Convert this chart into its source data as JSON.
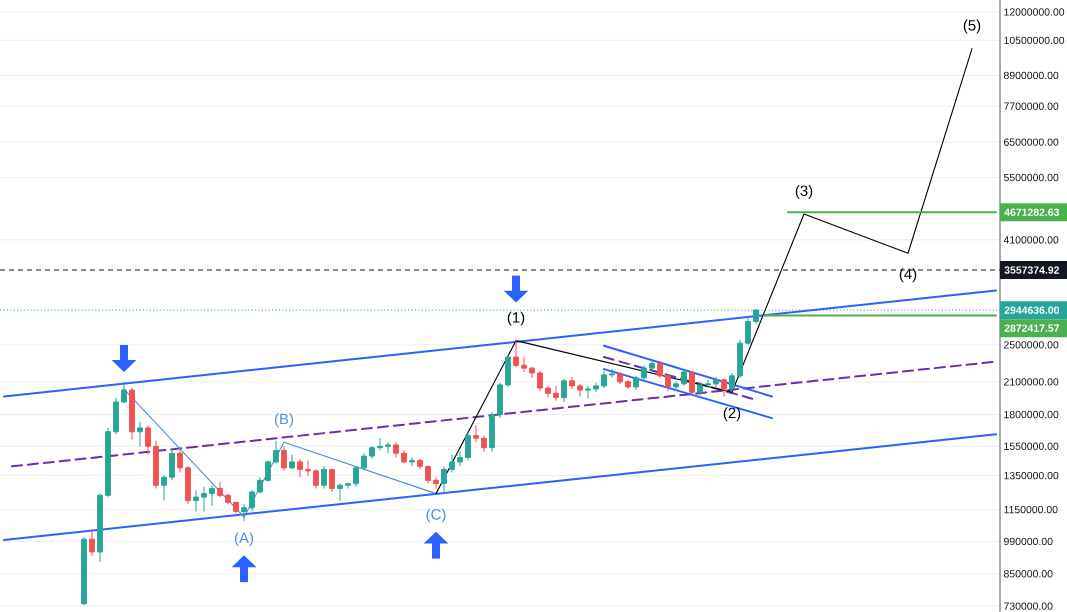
{
  "chart_data": {
    "type": "candlestick",
    "categories": [
      null,
      null,
      null,
      null,
      null,
      null,
      null,
      null,
      null,
      null,
      null,
      null,
      null,
      null,
      null,
      null,
      null,
      null,
      null,
      null,
      null,
      null,
      null,
      null,
      null,
      null,
      null,
      null,
      null,
      null,
      null,
      null,
      null,
      null,
      null,
      null,
      null,
      null,
      null,
      null,
      null,
      null,
      null,
      null,
      null,
      null,
      null,
      null,
      null,
      null,
      null,
      null,
      null,
      null,
      null,
      null,
      null,
      null,
      null,
      null,
      null,
      null,
      null,
      null,
      null,
      null,
      null,
      null,
      null,
      null,
      null,
      null,
      null,
      null,
      null,
      null,
      null,
      null,
      null,
      null,
      null,
      null,
      null,
      null,
      null,
      null,
      null,
      null,
      null,
      null,
      null,
      null,
      null,
      null,
      null,
      null,
      null,
      null,
      null,
      null,
      null,
      null,
      null,
      null,
      null,
      null,
      null,
      null,
      null,
      null,
      null,
      null,
      null,
      null,
      null,
      null,
      null,
      null,
      null,
      null,
      null,
      null,
      null,
      null,
      null
    ],
    "ohlc": [
      null,
      null,
      null,
      null,
      null,
      null,
      null,
      null,
      null,
      null,
      [
        738000,
        1010000,
        734000,
        1000000
      ],
      [
        1000000,
        1050000,
        925000,
        942000
      ],
      [
        942000,
        1240000,
        899000,
        1230000
      ],
      [
        1230000,
        1690000,
        1220000,
        1660000
      ],
      [
        1660000,
        1950000,
        1640000,
        1910000
      ],
      [
        1910000,
        2100000,
        1900000,
        2020000
      ],
      [
        2020000,
        2040000,
        1600000,
        1660000
      ],
      [
        1660000,
        1740000,
        1550000,
        1690000
      ],
      [
        1690000,
        1710000,
        1490000,
        1550000
      ],
      [
        1550000,
        1590000,
        1270000,
        1290000
      ],
      [
        1290000,
        1350000,
        1200000,
        1340000
      ],
      [
        1340000,
        1530000,
        1320000,
        1500000
      ],
      [
        1500000,
        1520000,
        1370000,
        1400000
      ],
      [
        1400000,
        1410000,
        1180000,
        1200000
      ],
      [
        1200000,
        1260000,
        1140000,
        1220000
      ],
      [
        1220000,
        1280000,
        1140000,
        1240000
      ],
      [
        1240000,
        1290000,
        1170000,
        1270000
      ],
      [
        1270000,
        1310000,
        1220000,
        1230000
      ],
      [
        1230000,
        1240000,
        1180000,
        1190000
      ],
      [
        1190000,
        1190000,
        1130000,
        1140000
      ],
      [
        1140000,
        1180000,
        1090000,
        1160000
      ],
      [
        1160000,
        1260000,
        1140000,
        1250000
      ],
      [
        1250000,
        1340000,
        1240000,
        1320000
      ],
      [
        1320000,
        1450000,
        1310000,
        1440000
      ],
      [
        1440000,
        1590000,
        1430000,
        1520000
      ],
      [
        1520000,
        1550000,
        1380000,
        1400000
      ],
      [
        1400000,
        1490000,
        1390000,
        1440000
      ],
      [
        1440000,
        1460000,
        1340000,
        1390000
      ],
      [
        1390000,
        1450000,
        1350000,
        1380000
      ],
      [
        1380000,
        1390000,
        1270000,
        1290000
      ],
      [
        1290000,
        1410000,
        1270000,
        1390000
      ],
      [
        1390000,
        1390000,
        1250000,
        1270000
      ],
      [
        1270000,
        1300000,
        1200000,
        1290000
      ],
      [
        1290000,
        1300000,
        1270000,
        1300000
      ],
      [
        1300000,
        1410000,
        1280000,
        1400000
      ],
      [
        1400000,
        1500000,
        1390000,
        1480000
      ],
      [
        1480000,
        1550000,
        1460000,
        1540000
      ],
      [
        1540000,
        1610000,
        1520000,
        1550000
      ],
      [
        1550000,
        1580000,
        1500000,
        1560000
      ],
      [
        1560000,
        1580000,
        1470000,
        1500000
      ],
      [
        1500000,
        1520000,
        1430000,
        1440000
      ],
      [
        1440000,
        1470000,
        1410000,
        1450000
      ],
      [
        1450000,
        1460000,
        1390000,
        1410000
      ],
      [
        1410000,
        1410000,
        1300000,
        1320000
      ],
      [
        1320000,
        1340000,
        1270000,
        1300000
      ],
      [
        1300000,
        1410000,
        1240000,
        1390000
      ],
      [
        1390000,
        1490000,
        1370000,
        1440000
      ],
      [
        1440000,
        1510000,
        1410000,
        1470000
      ],
      [
        1470000,
        1660000,
        1450000,
        1630000
      ],
      [
        1630000,
        1710000,
        1580000,
        1610000
      ],
      [
        1610000,
        1630000,
        1510000,
        1540000
      ],
      [
        1540000,
        1820000,
        1510000,
        1800000
      ],
      [
        1800000,
        2090000,
        1770000,
        2070000
      ],
      [
        2070000,
        2380000,
        2050000,
        2360000
      ],
      [
        2360000,
        2560000,
        2250000,
        2270000
      ],
      [
        2270000,
        2360000,
        2200000,
        2240000
      ],
      [
        2240000,
        2250000,
        2140000,
        2190000
      ],
      [
        2190000,
        2210000,
        2010000,
        2040000
      ],
      [
        2040000,
        2060000,
        1950000,
        1990000
      ],
      [
        1990000,
        2060000,
        1920000,
        1950000
      ],
      [
        1950000,
        2130000,
        1910000,
        2110000
      ],
      [
        2110000,
        2150000,
        2030000,
        2060000
      ],
      [
        2060000,
        2080000,
        1960000,
        2020000
      ],
      [
        2020000,
        2060000,
        1940000,
        2030000
      ],
      [
        2030000,
        2090000,
        2000000,
        2060000
      ],
      [
        2060000,
        2210000,
        2040000,
        2170000
      ],
      [
        2170000,
        2230000,
        2140000,
        2180000
      ],
      [
        2180000,
        2200000,
        2080000,
        2100000
      ],
      [
        2100000,
        2120000,
        2030000,
        2050000
      ],
      [
        2050000,
        2160000,
        2020000,
        2140000
      ],
      [
        2140000,
        2270000,
        2120000,
        2240000
      ],
      [
        2240000,
        2320000,
        2200000,
        2290000
      ],
      [
        2290000,
        2300000,
        2140000,
        2160000
      ],
      [
        2160000,
        2170000,
        2010000,
        2050000
      ],
      [
        2050000,
        2100000,
        2010000,
        2080000
      ],
      [
        2080000,
        2230000,
        2060000,
        2200000
      ],
      [
        2200000,
        2210000,
        1970000,
        2000000
      ],
      [
        2000000,
        2100000,
        1970000,
        2070000
      ],
      [
        2070000,
        2120000,
        2040000,
        2080000
      ],
      [
        2080000,
        2150000,
        2050000,
        2120000
      ],
      [
        2120000,
        2130000,
        1960000,
        2030000
      ],
      [
        2030000,
        2190000,
        2010000,
        2160000
      ],
      [
        2160000,
        2560000,
        2140000,
        2520000
      ],
      [
        2520000,
        2840000,
        2500000,
        2790000
      ],
      [
        2790000,
        2960000,
        2760000,
        2944636
      ],
      null,
      null,
      null,
      null,
      null,
      null,
      null,
      null,
      null,
      null,
      null,
      null,
      null,
      null,
      null,
      null,
      null,
      null,
      null,
      null,
      null,
      null,
      null,
      null,
      null,
      null,
      null,
      null,
      null,
      null
    ],
    "colors": [
      null,
      null,
      null,
      null,
      null,
      null,
      null,
      null,
      null,
      null,
      "#26a69a",
      "#ef5350",
      "#26a69a",
      "#26a69a",
      "#26a69a",
      "#26a69a",
      "#ef5350",
      "#26a69a",
      "#ef5350",
      "#ef5350",
      "#26a69a",
      "#26a69a",
      "#ef5350",
      "#ef5350",
      "#26a69a",
      "#26a69a",
      "#26a69a",
      "#ef5350",
      "#ef5350",
      "#ef5350",
      "#26a69a",
      "#26a69a",
      "#26a69a",
      "#26a69a",
      "#26a69a",
      "#ef5350",
      "#26a69a",
      "#ef5350",
      "#ef5350",
      "#ef5350",
      "#26a69a",
      "#ef5350",
      "#26a69a",
      "#26a69a",
      "#26a69a",
      "#26a69a",
      "#26a69a",
      "#26a69a",
      "#26a69a",
      "#ef5350",
      "#ef5350",
      "#26a69a",
      "#ef5350",
      "#ef5350",
      "#ef5350",
      "#26a69a",
      "#26a69a",
      "#26a69a",
      "#26a69a",
      "#ef5350",
      "#ef5350",
      "#26a69a",
      "#26a69a",
      "#26a69a",
      "#ef5350",
      "#ef5350",
      "#ef5350",
      "#ef5350",
      "#ef5350",
      "#ef5350",
      "#26a69a",
      "#ef5350",
      "#ef5350",
      "#26a69a",
      "#26a69a",
      "#26a69a",
      "#26a69a",
      "#ef5350",
      "#ef5350",
      "#26a69a",
      "#26a69a",
      "#26a69a",
      "#ef5350",
      "#ef5350",
      "#26a69a",
      "#26a69a",
      "#ef5350",
      "#26a69a",
      "#26a69a",
      "#26a69a",
      "#ef5350",
      "#26a69a",
      "#26a69a",
      "#26a69a",
      "#26a69a",
      null,
      null,
      null,
      null,
      null,
      null,
      null,
      null,
      null,
      null,
      null,
      null,
      null,
      null,
      null,
      null,
      null,
      null,
      null,
      null,
      null,
      null,
      null,
      null,
      null,
      null,
      null,
      null,
      null,
      null
    ],
    "series": [
      {
        "type": "line",
        "color": "#2962ff",
        "values": [
          1960000,
          null,
          null,
          null,
          null,
          null,
          null,
          null,
          null,
          null,
          null,
          null,
          null,
          null,
          null,
          null,
          null,
          null,
          null,
          null,
          null,
          null,
          null,
          null,
          null,
          null,
          null,
          null,
          null,
          null,
          null,
          null,
          null,
          null,
          null,
          null,
          null,
          null,
          null,
          null,
          null,
          null,
          null,
          null,
          null,
          null,
          null,
          null,
          null,
          null,
          null,
          null,
          null,
          null,
          null,
          null,
          null,
          null,
          null,
          null,
          null,
          null,
          null,
          null,
          null,
          null,
          null,
          null,
          null,
          null,
          null,
          null,
          null,
          null,
          null,
          null,
          null,
          null,
          null,
          null,
          null,
          null,
          null,
          null,
          null,
          null,
          null,
          null,
          null,
          null,
          null,
          null,
          null,
          null,
          null,
          null,
          null,
          null,
          null,
          null,
          null,
          null,
          null,
          null,
          null,
          null,
          null,
          null,
          null,
          null,
          null,
          null,
          null,
          null,
          null,
          null,
          null,
          null,
          null,
          null,
          null,
          null,
          null,
          null,
          3230000
        ]
      },
      {
        "type": "line",
        "color": "#2962ff",
        "values": [
          997000,
          null,
          null,
          null,
          null,
          null,
          null,
          null,
          null,
          null,
          null,
          null,
          null,
          null,
          null,
          null,
          null,
          null,
          null,
          null,
          null,
          null,
          null,
          null,
          null,
          null,
          null,
          null,
          null,
          null,
          null,
          null,
          null,
          null,
          null,
          null,
          null,
          null,
          null,
          null,
          null,
          null,
          null,
          null,
          null,
          null,
          null,
          null,
          null,
          null,
          null,
          null,
          null,
          null,
          null,
          null,
          null,
          null,
          null,
          null,
          null,
          null,
          null,
          null,
          null,
          null,
          null,
          null,
          null,
          null,
          null,
          null,
          null,
          null,
          null,
          null,
          null,
          null,
          null,
          null,
          null,
          null,
          null,
          null,
          null,
          null,
          null,
          null,
          null,
          null,
          null,
          null,
          null,
          null,
          null,
          null,
          null,
          null,
          null,
          null,
          null,
          null,
          null,
          null,
          null,
          null,
          null,
          null,
          null,
          null,
          null,
          null,
          null,
          null,
          null,
          null,
          null,
          null,
          null,
          null,
          null,
          null,
          null,
          null,
          1640000
        ]
      },
      {
        "type": "line",
        "color": "#6f2da8",
        "line_style": "dashed",
        "values": [
          null,
          1410000,
          null,
          null,
          null,
          null,
          null,
          null,
          null,
          null,
          null,
          null,
          null,
          null,
          null,
          null,
          null,
          null,
          null,
          null,
          null,
          null,
          null,
          null,
          null,
          null,
          null,
          null,
          null,
          null,
          null,
          null,
          null,
          null,
          null,
          null,
          null,
          null,
          null,
          null,
          null,
          null,
          null,
          null,
          null,
          null,
          null,
          null,
          null,
          null,
          null,
          null,
          null,
          null,
          null,
          null,
          null,
          null,
          null,
          null,
          null,
          null,
          null,
          null,
          null,
          null,
          null,
          null,
          null,
          null,
          null,
          null,
          null,
          null,
          null,
          null,
          null,
          null,
          null,
          null,
          null,
          null,
          null,
          null,
          null,
          null,
          null,
          null,
          null,
          null,
          null,
          null,
          null,
          null,
          null,
          null,
          null,
          null,
          null,
          null,
          null,
          null,
          null,
          null,
          null,
          null,
          null,
          null,
          null,
          null,
          null,
          null,
          null,
          null,
          null,
          null,
          null,
          null,
          null,
          null,
          null,
          null,
          null,
          null,
          2310000
        ]
      },
      {
        "type": "line",
        "color": "#2962ff",
        "values": [
          null,
          null,
          null,
          null,
          null,
          null,
          null,
          null,
          null,
          null,
          null,
          null,
          null,
          null,
          null,
          null,
          null,
          null,
          null,
          null,
          null,
          null,
          null,
          null,
          null,
          null,
          null,
          null,
          null,
          null,
          null,
          null,
          null,
          null,
          null,
          null,
          null,
          null,
          null,
          null,
          null,
          null,
          null,
          null,
          null,
          null,
          null,
          null,
          null,
          null,
          null,
          null,
          null,
          null,
          null,
          null,
          null,
          null,
          null,
          null,
          null,
          null,
          null,
          null,
          null,
          null,
          null,
          null,
          null,
          null,
          null,
          null,
          null,
          null,
          null,
          2490000,
          null,
          null,
          null,
          null,
          null,
          null,
          null,
          null,
          null,
          null,
          null,
          null,
          null,
          null,
          null,
          null,
          null,
          null,
          null,
          null,
          1960000,
          null,
          null,
          null,
          null,
          null,
          null,
          null,
          null,
          null,
          null,
          null,
          null,
          null,
          null,
          null,
          null,
          null,
          null,
          null,
          null,
          null,
          null,
          null,
          null,
          null,
          null,
          null,
          null
        ]
      },
      {
        "type": "line",
        "color": "#2962ff",
        "values": [
          null,
          null,
          null,
          null,
          null,
          null,
          null,
          null,
          null,
          null,
          null,
          null,
          null,
          null,
          null,
          null,
          null,
          null,
          null,
          null,
          null,
          null,
          null,
          null,
          null,
          null,
          null,
          null,
          null,
          null,
          null,
          null,
          null,
          null,
          null,
          null,
          null,
          null,
          null,
          null,
          null,
          null,
          null,
          null,
          null,
          null,
          null,
          null,
          null,
          null,
          null,
          null,
          null,
          null,
          null,
          null,
          null,
          null,
          null,
          null,
          null,
          null,
          null,
          null,
          null,
          null,
          null,
          null,
          null,
          null,
          null,
          null,
          null,
          null,
          null,
          2230000,
          null,
          null,
          null,
          null,
          null,
          null,
          null,
          null,
          null,
          null,
          null,
          null,
          null,
          null,
          null,
          null,
          null,
          null,
          null,
          null,
          1770000,
          null,
          null,
          null,
          null,
          null,
          null,
          null,
          null,
          null,
          null,
          null,
          null,
          null,
          null,
          null,
          null,
          null,
          null,
          null,
          null,
          null,
          null,
          null,
          null,
          null,
          null,
          null,
          null
        ]
      },
      {
        "type": "line",
        "color": "#6f2da8",
        "line_style": "dashed",
        "values": [
          null,
          null,
          null,
          null,
          null,
          null,
          null,
          null,
          null,
          null,
          null,
          null,
          null,
          null,
          null,
          null,
          null,
          null,
          null,
          null,
          null,
          null,
          null,
          null,
          null,
          null,
          null,
          null,
          null,
          null,
          null,
          null,
          null,
          null,
          null,
          null,
          null,
          null,
          null,
          null,
          null,
          null,
          null,
          null,
          null,
          null,
          null,
          null,
          null,
          null,
          null,
          null,
          null,
          null,
          null,
          null,
          null,
          null,
          null,
          null,
          null,
          null,
          null,
          null,
          null,
          null,
          null,
          null,
          null,
          null,
          null,
          null,
          null,
          null,
          null,
          2360000,
          null,
          null,
          null,
          null,
          null,
          null,
          null,
          null,
          null,
          null,
          null,
          null,
          null,
          null,
          null,
          null,
          null,
          null,
          1930000,
          null,
          null,
          null,
          null,
          null,
          null,
          null,
          null,
          null,
          null,
          null,
          null,
          null,
          null,
          null,
          null,
          null,
          null,
          null,
          null,
          null,
          null,
          null,
          null,
          null,
          null,
          null,
          null,
          null,
          null
        ]
      },
      {
        "type": "line",
        "color": "#4a8fdc",
        "values": [
          null,
          null,
          null,
          null,
          null,
          null,
          null,
          null,
          null,
          null,
          null,
          null,
          null,
          null,
          null,
          2030000,
          null,
          null,
          null,
          null,
          null,
          null,
          null,
          null,
          null,
          null,
          null,
          null,
          null,
          null,
          1110000,
          null,
          null,
          null,
          null,
          1580000,
          null,
          null,
          null,
          null,
          null,
          null,
          null,
          null,
          null,
          null,
          null,
          null,
          null,
          null,
          null,
          null,
          null,
          null,
          1240000,
          null,
          null,
          null,
          null,
          null,
          null,
          null,
          null,
          null,
          null,
          null,
          null,
          null,
          null,
          null,
          null,
          null,
          null,
          null,
          null,
          null,
          null,
          null,
          null,
          null,
          null,
          null,
          null,
          null,
          null,
          null,
          null,
          null,
          null,
          null,
          null,
          null,
          null,
          null,
          null,
          null,
          null,
          null,
          null,
          null,
          null,
          null,
          null,
          null,
          null,
          null,
          null,
          null,
          null,
          null,
          null,
          null,
          null,
          null,
          null,
          null,
          null,
          null,
          null,
          null,
          null,
          null,
          null,
          null,
          null
        ]
      },
      {
        "type": "line",
        "color": "#000000",
        "values": [
          null,
          null,
          null,
          null,
          null,
          null,
          null,
          null,
          null,
          null,
          null,
          null,
          null,
          null,
          null,
          null,
          null,
          null,
          null,
          null,
          null,
          null,
          null,
          null,
          null,
          null,
          null,
          null,
          null,
          null,
          null,
          null,
          null,
          null,
          null,
          null,
          null,
          null,
          null,
          null,
          null,
          null,
          null,
          null,
          null,
          null,
          null,
          null,
          null,
          null,
          null,
          null,
          null,
          null,
          1240000,
          null,
          null,
          null,
          null,
          null,
          null,
          null,
          null,
          null,
          2550000,
          null,
          null,
          null,
          null,
          null,
          null,
          null,
          null,
          null,
          null,
          null,
          null,
          null,
          null,
          null,
          null,
          null,
          null,
          null,
          null,
          null,
          null,
          null,
          null,
          null,
          null,
          2000000,
          null,
          null,
          null,
          null,
          null,
          null,
          null,
          null,
          4630000,
          null,
          null,
          null,
          null,
          null,
          null,
          null,
          null,
          null,
          null,
          null,
          null,
          3850000,
          null,
          null,
          null,
          null,
          null,
          null,
          null,
          10100000,
          null,
          null,
          null
        ]
      },
      {
        "type": "line",
        "color": "#4caf50",
        "values": [
          null,
          null,
          null,
          null,
          null,
          null,
          null,
          null,
          null,
          null,
          null,
          null,
          null,
          null,
          null,
          null,
          null,
          null,
          null,
          null,
          null,
          null,
          null,
          null,
          null,
          null,
          null,
          null,
          null,
          null,
          null,
          null,
          null,
          null,
          null,
          null,
          null,
          null,
          null,
          null,
          null,
          null,
          null,
          null,
          null,
          null,
          null,
          null,
          null,
          null,
          null,
          null,
          null,
          null,
          null,
          null,
          null,
          null,
          null,
          null,
          null,
          null,
          null,
          null,
          null,
          null,
          null,
          null,
          null,
          null,
          null,
          null,
          null,
          null,
          null,
          null,
          null,
          null,
          null,
          null,
          null,
          null,
          null,
          null,
          null,
          null,
          null,
          null,
          null,
          null,
          null,
          null,
          null,
          null,
          null,
          null,
          null,
          null,
          4671282.63,
          null,
          null,
          null,
          null,
          null,
          null,
          null,
          null,
          null,
          null,
          null,
          null,
          null,
          null,
          null,
          null,
          null,
          null,
          null,
          null,
          null,
          null,
          null,
          null,
          null,
          4671282.63
        ],
        "value_labels": [
          null,
          null,
          null,
          null,
          null,
          null,
          null,
          null,
          null,
          null,
          null,
          null,
          null,
          null,
          null,
          null,
          null,
          null,
          null,
          null,
          null,
          null,
          null,
          null,
          null,
          null,
          null,
          null,
          null,
          null,
          null,
          null,
          null,
          null,
          null,
          null,
          null,
          null,
          null,
          null,
          null,
          null,
          null,
          null,
          null,
          null,
          null,
          null,
          null,
          null,
          null,
          null,
          null,
          null,
          null,
          null,
          null,
          null,
          null,
          null,
          null,
          null,
          null,
          null,
          null,
          null,
          null,
          null,
          null,
          null,
          null,
          null,
          null,
          null,
          null,
          null,
          null,
          null,
          null,
          null,
          null,
          null,
          null,
          null,
          null,
          null,
          null,
          null,
          null,
          null,
          null,
          null,
          null,
          null,
          null,
          null,
          null,
          null,
          null,
          null,
          null,
          null,
          null,
          null,
          null,
          null,
          null,
          null,
          null,
          null,
          null,
          null,
          null,
          null,
          null,
          null,
          null,
          null,
          null,
          null,
          null,
          null,
          null,
          null,
          "4671282.63"
        ]
      },
      {
        "type": "line",
        "color": "#4caf50",
        "values": [
          null,
          null,
          null,
          null,
          null,
          null,
          null,
          null,
          null,
          null,
          null,
          null,
          null,
          null,
          null,
          null,
          null,
          null,
          null,
          null,
          null,
          null,
          null,
          null,
          null,
          null,
          null,
          null,
          null,
          null,
          null,
          null,
          null,
          null,
          null,
          null,
          null,
          null,
          null,
          null,
          null,
          null,
          null,
          null,
          null,
          null,
          null,
          null,
          null,
          null,
          null,
          null,
          null,
          null,
          null,
          null,
          null,
          null,
          null,
          null,
          null,
          null,
          null,
          null,
          null,
          null,
          null,
          null,
          null,
          null,
          null,
          null,
          null,
          null,
          null,
          null,
          null,
          null,
          null,
          null,
          null,
          null,
          null,
          null,
          null,
          null,
          null,
          null,
          null,
          null,
          null,
          null,
          null,
          null,
          null,
          2872417.57,
          null,
          null,
          null,
          null,
          null,
          null,
          null,
          null,
          null,
          null,
          null,
          null,
          null,
          null,
          null,
          null,
          null,
          null,
          null,
          null,
          null,
          null,
          null,
          null,
          null,
          null,
          null,
          null,
          2872417.57
        ],
        "value_labels": [
          null,
          null,
          null,
          null,
          null,
          null,
          null,
          null,
          null,
          null,
          null,
          null,
          null,
          null,
          null,
          null,
          null,
          null,
          null,
          null,
          null,
          null,
          null,
          null,
          null,
          null,
          null,
          null,
          null,
          null,
          null,
          null,
          null,
          null,
          null,
          null,
          null,
          null,
          null,
          null,
          null,
          null,
          null,
          null,
          null,
          null,
          null,
          null,
          null,
          null,
          null,
          null,
          null,
          null,
          null,
          null,
          null,
          null,
          null,
          null,
          null,
          null,
          null,
          null,
          null,
          null,
          null,
          null,
          null,
          null,
          null,
          null,
          null,
          null,
          null,
          null,
          null,
          null,
          null,
          null,
          null,
          null,
          null,
          null,
          null,
          null,
          null,
          null,
          null,
          null,
          null,
          null,
          null,
          null,
          null,
          null,
          null,
          null,
          null,
          null,
          null,
          null,
          null,
          null,
          null,
          null,
          null,
          null,
          null,
          null,
          null,
          null,
          null,
          null,
          null,
          null,
          null,
          null,
          null,
          null,
          null,
          null,
          null,
          null,
          "2872417.57"
        ]
      }
    ],
    "annotations": [
      {
        "text": "(A)",
        "y": 1110000
      },
      {
        "text": "(B)",
        "y": 1580000
      },
      {
        "text": "(C)",
        "y": 1240000
      },
      {
        "text": "(1)",
        "y": 2550000
      },
      {
        "text": "(2)",
        "y": 2000000
      },
      {
        "text": "(3)",
        "y": 4630000
      },
      {
        "text": "(4)",
        "y": 3850000
      },
      {
        "text": "(5)",
        "y": 10100000
      }
    ],
    "ref_lines": [
      {
        "axis": "y",
        "value": 3557374.92,
        "label": "3557374.92",
        "color": "#131722",
        "line_style": "dashed"
      },
      {
        "axis": "y",
        "value": 2944636,
        "label": "2944636.00",
        "color": "#26a69a",
        "line_style": "dotted"
      }
    ],
    "log": "y",
    "ylim": [
      710000,
      12700000
    ],
    "yticks": [
      {
        "value": 730000,
        "label": "730000.00"
      },
      {
        "value": 850000,
        "label": "850000.00"
      },
      {
        "value": 990000,
        "label": "990000.00"
      },
      {
        "value": 1150000,
        "label": "1150000.00"
      },
      {
        "value": 1350000,
        "label": "1350000.00"
      },
      {
        "value": 1550000,
        "label": "1550000.00"
      },
      {
        "value": 1800000,
        "label": "1800000.00"
      },
      {
        "value": 2100000,
        "label": "2100000.00"
      },
      {
        "value": 2500000,
        "label": "2500000.00"
      },
      {
        "value": 4100000,
        "label": "4100000.00"
      },
      {
        "value": 5500000,
        "label": "5500000.00"
      },
      {
        "value": 6500000,
        "label": "6500000.00"
      },
      {
        "value": 7700000,
        "label": "7700000.00"
      },
      {
        "value": 8900000,
        "label": "8900000.00"
      },
      {
        "value": 10500000,
        "label": "10500000.00"
      },
      {
        "value": 12000000,
        "label": "12000000.00"
      }
    ],
    "grid": "y",
    "tick_labels": "y"
  }
}
